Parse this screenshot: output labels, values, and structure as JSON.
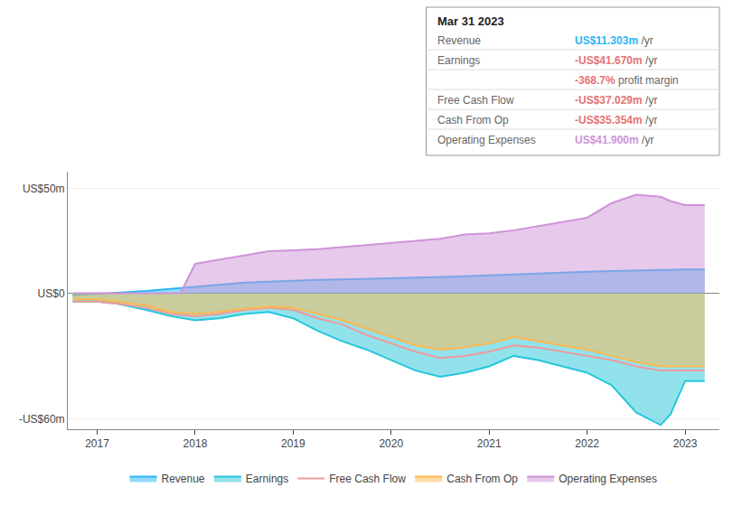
{
  "chart_data": {
    "type": "line",
    "xlim": [
      2016.7,
      2023.35
    ],
    "xticks": [
      2017,
      2018,
      2019,
      2020,
      2021,
      2022,
      2023
    ],
    "ylim": [
      -65,
      58
    ],
    "yticks": [
      {
        "value": 50,
        "label": "US$50m"
      },
      {
        "value": 0,
        "label": "US$0"
      },
      {
        "value": -60,
        "label": "-US$60m"
      }
    ],
    "grid": true,
    "legend": "bottom",
    "series": [
      {
        "name": "Revenue",
        "color": "#29b6f6",
        "type": "area",
        "x": [
          2016.75,
          2017.0,
          2017.2,
          2017.5,
          2017.75,
          2018.0,
          2018.25,
          2018.5,
          2018.75,
          2019.0,
          2019.25,
          2019.5,
          2019.75,
          2020.0,
          2020.25,
          2020.5,
          2020.75,
          2021.0,
          2021.25,
          2021.5,
          2021.75,
          2022.0,
          2022.25,
          2022.5,
          2022.75,
          2022.85,
          2023.0,
          2023.2
        ],
        "values": [
          -1.0,
          -0.5,
          0.2,
          1.0,
          2.0,
          3.0,
          4.0,
          5.0,
          5.5,
          6.0,
          6.3,
          6.5,
          6.8,
          7.0,
          7.2,
          7.5,
          8.0,
          8.5,
          9.0,
          9.5,
          10.0,
          10.2,
          10.5,
          10.8,
          11.0,
          11.1,
          11.3,
          11.3
        ]
      },
      {
        "name": "Earnings",
        "color": "#26c6da",
        "type": "area",
        "x": [
          2016.75,
          2017.0,
          2017.2,
          2017.5,
          2017.75,
          2018.0,
          2018.25,
          2018.5,
          2018.75,
          2019.0,
          2019.25,
          2019.5,
          2019.75,
          2020.0,
          2020.25,
          2020.5,
          2020.75,
          2021.0,
          2021.25,
          2021.5,
          2021.75,
          2022.0,
          2022.25,
          2022.5,
          2022.75,
          2022.85,
          2023.0,
          2023.2
        ],
        "values": [
          -4,
          -4,
          -5,
          -8,
          -11,
          -13,
          -12,
          -10,
          -9,
          -12,
          -18,
          -23,
          -27,
          -32,
          -37,
          -40,
          -38,
          -35,
          -30,
          -32,
          -35,
          -38,
          -44,
          -57,
          -63,
          -58,
          -42,
          -42
        ]
      },
      {
        "name": "Free Cash Flow",
        "color": "#ef9a9a",
        "type": "line",
        "x": [
          2016.75,
          2017.0,
          2017.2,
          2017.5,
          2017.75,
          2018.0,
          2018.25,
          2018.5,
          2018.75,
          2019.0,
          2019.25,
          2019.5,
          2019.75,
          2020.0,
          2020.25,
          2020.5,
          2020.75,
          2021.0,
          2021.25,
          2021.5,
          2021.75,
          2022.0,
          2022.25,
          2022.5,
          2022.75,
          2022.85,
          2023.0,
          2023.2
        ],
        "values": [
          -4,
          -4,
          -5,
          -7,
          -10,
          -11,
          -10,
          -8,
          -7,
          -8,
          -12,
          -15,
          -20,
          -24,
          -28,
          -31,
          -30,
          -28,
          -25,
          -26,
          -28,
          -30,
          -32,
          -35,
          -37,
          -37,
          -37,
          -37
        ]
      },
      {
        "name": "Cash From Op",
        "color": "#ffb74d",
        "type": "area",
        "x": [
          2016.75,
          2017.0,
          2017.2,
          2017.5,
          2017.75,
          2018.0,
          2018.25,
          2018.5,
          2018.75,
          2019.0,
          2019.25,
          2019.5,
          2019.75,
          2020.0,
          2020.25,
          2020.5,
          2020.75,
          2021.0,
          2021.25,
          2021.5,
          2021.75,
          2022.0,
          2022.25,
          2022.5,
          2022.75,
          2022.85,
          2023.0,
          2023.2
        ],
        "values": [
          -3,
          -3,
          -4,
          -6,
          -9,
          -10,
          -9,
          -7.5,
          -6.5,
          -7,
          -10,
          -13,
          -17,
          -21,
          -25,
          -27,
          -26,
          -24,
          -21,
          -23,
          -25,
          -27,
          -30,
          -33,
          -35,
          -35,
          -35,
          -35
        ]
      },
      {
        "name": "Operating Expenses",
        "color": "#ce93d8",
        "type": "area",
        "x": [
          2016.75,
          2017.0,
          2017.2,
          2017.5,
          2017.75,
          2017.85,
          2018.0,
          2018.25,
          2018.5,
          2018.75,
          2019.0,
          2019.25,
          2019.5,
          2019.75,
          2020.0,
          2020.25,
          2020.5,
          2020.75,
          2021.0,
          2021.25,
          2021.5,
          2021.75,
          2022.0,
          2022.25,
          2022.5,
          2022.75,
          2022.85,
          2023.0,
          2023.2
        ],
        "values": [
          0,
          0,
          0,
          0,
          0,
          0,
          14,
          16,
          18,
          20,
          20.5,
          21,
          22,
          23,
          24,
          25,
          26,
          28,
          28.5,
          30,
          32,
          34,
          36,
          43,
          47,
          46,
          44,
          42,
          42
        ]
      }
    ],
    "annotations": [
      {
        "text": "Mar 31 2023",
        "rows": [
          {
            "label": "Revenue",
            "value": "US$11.303m",
            "unit": " /yr",
            "color": "#29b6f6"
          },
          {
            "label": "Earnings",
            "value": "-US$41.670m",
            "unit": " /yr",
            "color": "#e57373"
          },
          {
            "value": "-368.7%",
            "unit": " profit margin",
            "color": "#e57373"
          },
          {
            "label": "Free Cash Flow",
            "value": "-US$37.029m",
            "unit": " /yr",
            "color": "#e57373"
          },
          {
            "label": "Cash From Op",
            "value": "-US$35.354m",
            "unit": " /yr",
            "color": "#e57373"
          },
          {
            "label": "Operating Expenses",
            "value": "US$41.900m",
            "unit": " /yr",
            "color": "#ce93d8"
          }
        ]
      }
    ]
  }
}
